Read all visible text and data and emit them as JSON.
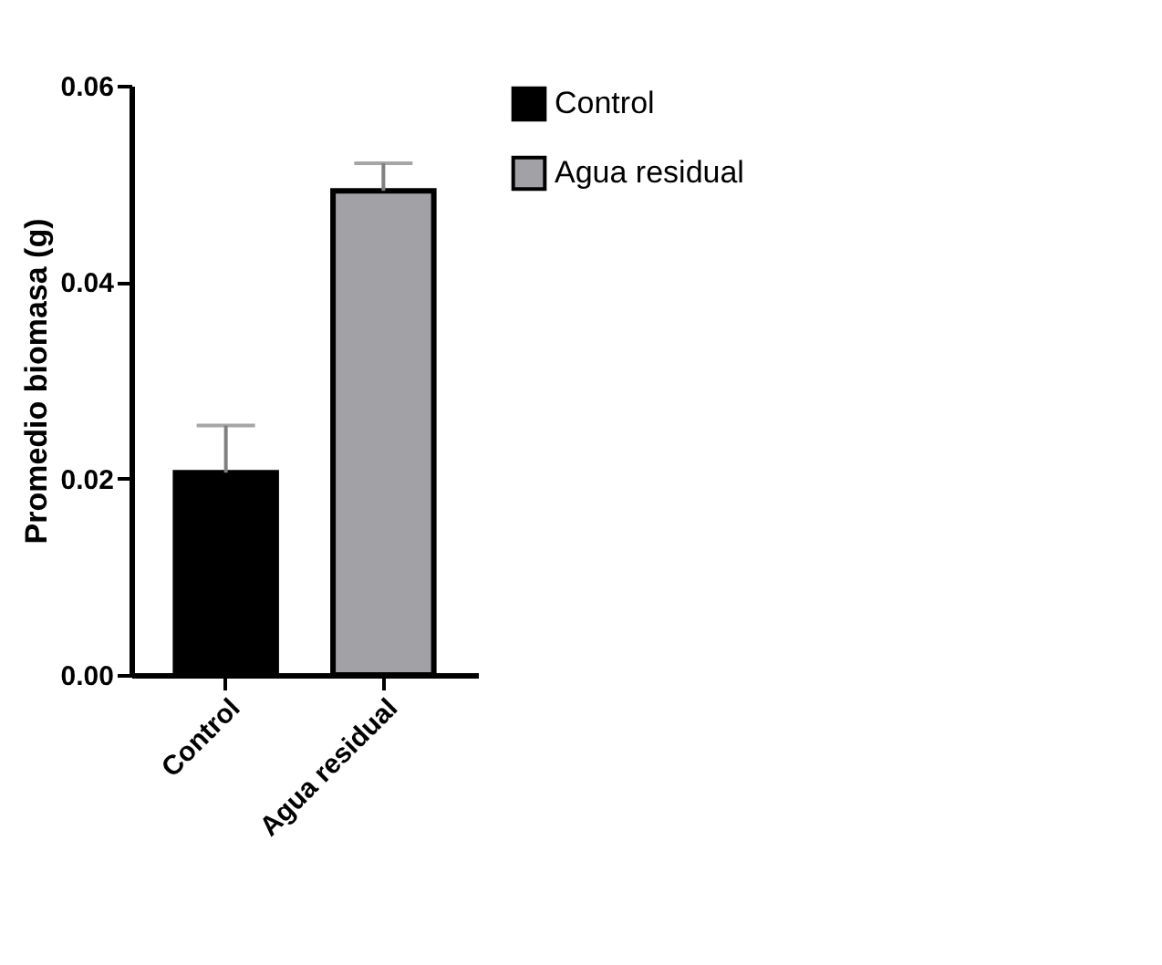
{
  "chart_data": {
    "type": "bar",
    "ylabel": "Promedio biomasa (g)",
    "categories": [
      "Control",
      "Agua residual"
    ],
    "series": [
      {
        "name": "Control",
        "color": "#000000",
        "values": [
          0.0206,
          null
        ],
        "errors": [
          [
            0.0206,
            0.0254
          ],
          null
        ]
      },
      {
        "name": "Agua residual",
        "color": "#a2a1a6",
        "values": [
          null,
          0.0493
        ],
        "errors": [
          null,
          [
            0.0493,
            0.0521
          ]
        ]
      }
    ],
    "ylim": [
      0,
      0.06
    ],
    "yticks": [
      {
        "value": 0,
        "label": "0.00"
      },
      {
        "value": 0.02,
        "label": "0.02"
      },
      {
        "value": 0.04,
        "label": "0.04"
      },
      {
        "value": 0.06,
        "label": "0.06"
      }
    ],
    "legend": "top right",
    "grid": false
  }
}
